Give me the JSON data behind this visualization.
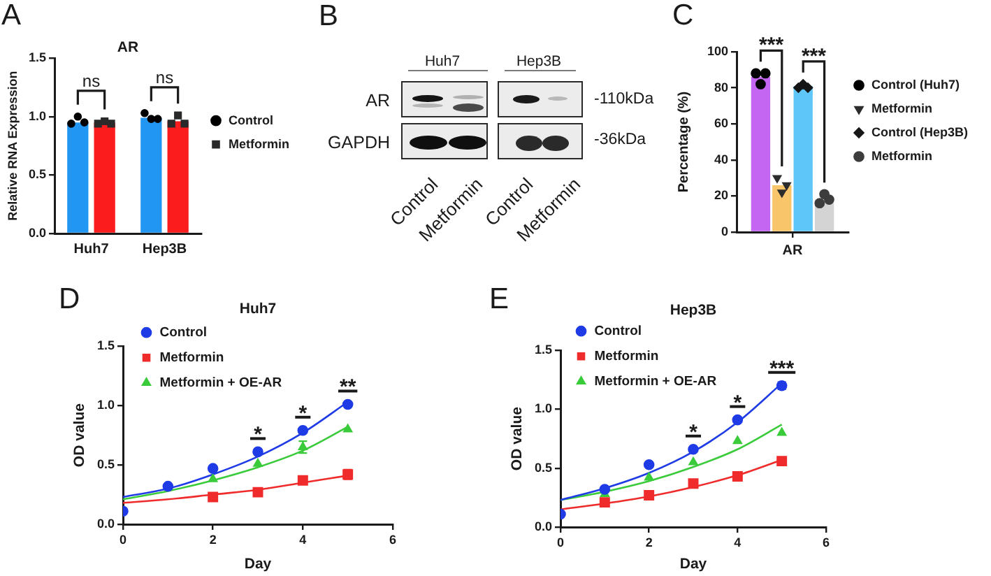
{
  "chart_data": [
    {
      "type": "bar",
      "title": "AR",
      "ylabel": "Relative RNA Expression",
      "categories": [
        "Huh7",
        "Hep3B"
      ],
      "series": [
        {
          "color": "#2196f3",
          "values": [
            0.95,
            0.99
          ]
        },
        {
          "color": "#fb1d1d",
          "values": [
            0.95,
            0.96
          ]
        },
        {
          "type": "scatter",
          "name": "Control",
          "color": "#000000",
          "marker": "circle",
          "x": [
            "Huh7",
            "Huh7",
            "Huh7",
            "Hep3B",
            "Hep3B",
            "Hep3B"
          ],
          "values": [
            0.94,
            1.0,
            0.95,
            1.03,
            0.98,
            0.98
          ]
        },
        {
          "type": "scatter",
          "name": "Metformin",
          "color": "#2a2a2a",
          "marker": "square",
          "x": [
            "Huh7",
            "Huh7",
            "Huh7",
            "Hep3B",
            "Hep3B",
            "Hep3B"
          ],
          "values": [
            0.94,
            0.96,
            0.94,
            0.94,
            1.01,
            0.94
          ]
        }
      ],
      "ylim": [
        0,
        1.5
      ],
      "yticks": [
        {
          "value": 0,
          "label": "0.0"
        },
        {
          "value": 0.5,
          "label": "0.5"
        },
        {
          "value": 1,
          "label": "1.0"
        },
        {
          "value": 1.5,
          "label": "1.5"
        }
      ],
      "legend": "right",
      "annotations": [
        "A",
        "ns",
        "ns"
      ]
    },
    {
      "type": "other",
      "annotations": [
        "B",
        "Huh7",
        "Hep3B",
        "AR",
        "GAPDH",
        "-110kDa",
        "-36kDa",
        "Control",
        "Metformin",
        "Control",
        "Metformin"
      ]
    },
    {
      "type": "bar",
      "ylabel": "Percentage (%)",
      "categories": [
        "AR"
      ],
      "series": [
        {
          "color": "#c466f2",
          "values": [
            86
          ]
        },
        {
          "color": "#f8c56b",
          "values": [
            26
          ]
        },
        {
          "color": "#5fc6f9",
          "values": [
            81
          ]
        },
        {
          "color": "#d4d4d4",
          "values": [
            18
          ]
        },
        {
          "type": "scatter",
          "name": "Control (Huh7)",
          "color": "#000000",
          "marker": "circle",
          "x": [
            "AR",
            "AR",
            "AR"
          ],
          "values": [
            88,
            82,
            88
          ]
        },
        {
          "type": "scatter",
          "name": "Metformin",
          "color": "#3c3c3c",
          "marker": "circle",
          "x": [
            "AR",
            "AR",
            "AR"
          ],
          "values": [
            16,
            21,
            18
          ]
        },
        {
          "type": "scatter",
          "name": "Control (Hep3B)",
          "color": "#161616",
          "marker": "diamond",
          "x": [
            "AR",
            "AR",
            "AR"
          ],
          "values": [
            80,
            82,
            80
          ]
        },
        {
          "type": "scatter",
          "name": "Metformin",
          "color": "#2c2c2c",
          "marker": "triangle",
          "x": [
            "AR",
            "AR",
            "AR"
          ],
          "values": [
            30,
            22,
            26
          ]
        }
      ],
      "ylim": [
        0,
        100
      ],
      "yticks": [
        0,
        20,
        40,
        60,
        80,
        100
      ],
      "legend": "right",
      "annotations": [
        "C",
        "***",
        "***"
      ]
    },
    {
      "type": "scatter",
      "title": "Huh7",
      "xlabel": "Day",
      "ylabel": "OD value",
      "x": [
        0,
        1,
        2,
        3,
        4,
        5
      ],
      "series": [
        {
          "name": "Control",
          "color": "#1f3be6",
          "marker": "circle",
          "values": [
            0.11,
            0.32,
            0.47,
            0.61,
            0.79,
            1.01
          ]
        },
        {
          "name": "Metformin",
          "color": "#ef2b2b",
          "marker": "square",
          "values": [
            null,
            null,
            0.23,
            0.27,
            0.37,
            0.42
          ],
          "errors": [
            null,
            null,
            null,
            null,
            null,
            0.04
          ]
        },
        {
          "name": "Metformin + OE-AR",
          "color": "#3acb3a",
          "marker": "triangle",
          "values": [
            null,
            null,
            0.38,
            0.51,
            0.65,
            0.8
          ],
          "errors": [
            null,
            null,
            null,
            null,
            0.05,
            null
          ]
        },
        {
          "type": "line",
          "color": "#1f3be6",
          "marker": "none",
          "x": [
            0,
            1,
            2,
            3,
            4,
            5
          ],
          "values": [
            0.23,
            0.3,
            0.42,
            0.57,
            0.77,
            1.03
          ]
        },
        {
          "type": "line",
          "color": "#ef2b2b",
          "marker": "none",
          "x": [
            0,
            1,
            2,
            3,
            4,
            5
          ],
          "values": [
            0.18,
            0.21,
            0.25,
            0.29,
            0.35,
            0.41
          ]
        },
        {
          "type": "line",
          "color": "#3acb3a",
          "marker": "none",
          "x": [
            0,
            1,
            2,
            3,
            4,
            5
          ],
          "values": [
            0.21,
            0.28,
            0.37,
            0.48,
            0.62,
            0.82
          ]
        }
      ],
      "xlim": [
        0,
        6
      ],
      "xticks": [
        0,
        2,
        4,
        6
      ],
      "ylim": [
        0,
        1.5
      ],
      "yticks": [
        {
          "value": 0,
          "label": "0.0"
        },
        {
          "value": 0.5,
          "label": "0.5"
        },
        {
          "value": 1,
          "label": "1.0"
        },
        {
          "value": 1.5,
          "label": "1.5"
        }
      ],
      "legend": "top left",
      "annotations": [
        "D",
        "*",
        "*",
        "**"
      ]
    },
    {
      "type": "scatter",
      "title": "Hep3B",
      "xlabel": "Day",
      "ylabel": "OD value",
      "x": [
        0,
        1,
        2,
        3,
        4,
        5
      ],
      "series": [
        {
          "name": "Control",
          "color": "#1f3be6",
          "marker": "circle",
          "values": [
            0.11,
            0.32,
            0.53,
            0.66,
            0.91,
            1.2
          ],
          "errors": [
            null,
            null,
            null,
            null,
            null,
            0.03
          ]
        },
        {
          "name": "Metformin",
          "color": "#ef2b2b",
          "marker": "square",
          "values": [
            null,
            0.21,
            0.27,
            0.37,
            0.43,
            0.56
          ]
        },
        {
          "name": "Metformin + OE-AR",
          "color": "#3acb3a",
          "marker": "triangle",
          "values": [
            null,
            0.28,
            0.42,
            0.55,
            0.73,
            0.8
          ]
        },
        {
          "type": "line",
          "color": "#1f3be6",
          "marker": "none",
          "x": [
            0,
            1,
            2,
            3,
            4,
            5
          ],
          "values": [
            0.23,
            0.33,
            0.46,
            0.64,
            0.89,
            1.22
          ]
        },
        {
          "type": "line",
          "color": "#ef2b2b",
          "marker": "none",
          "x": [
            0,
            1,
            2,
            3,
            4,
            5
          ],
          "values": [
            0.15,
            0.2,
            0.26,
            0.34,
            0.44,
            0.57
          ]
        },
        {
          "type": "line",
          "color": "#3acb3a",
          "marker": "none",
          "x": [
            0,
            1,
            2,
            3,
            4,
            5
          ],
          "values": [
            0.23,
            0.3,
            0.39,
            0.51,
            0.66,
            0.87
          ]
        }
      ],
      "xlim": [
        0,
        6
      ],
      "xticks": [
        0,
        2,
        4,
        6
      ],
      "ylim": [
        0,
        1.5
      ],
      "yticks": [
        {
          "value": 0,
          "label": "0.0"
        },
        {
          "value": 0.5,
          "label": "0.5"
        },
        {
          "value": 1,
          "label": "1.0"
        },
        {
          "value": 1.5,
          "label": "1.5"
        }
      ],
      "legend": "top left",
      "annotations": [
        "E",
        "*",
        "*",
        "***"
      ]
    }
  ]
}
